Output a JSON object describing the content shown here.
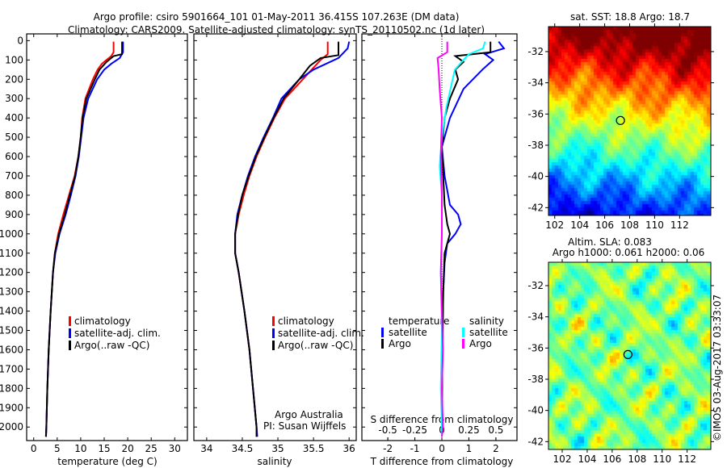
{
  "header": {
    "title_line1": "Argo profile: csiro 5901664_101 01-May-2011 36.415S 107.263E (DM data)",
    "title_line2": "Climatology: CARS2009. Satellite-adjusted climatology: synTS_20110502.nc (1d later)"
  },
  "footer": {
    "copyright": "©IMOS 03-Aug-2017 03:33:07"
  },
  "colors": {
    "climatology": "#ff0000",
    "satellite": "#0000ff",
    "argo": "#000000",
    "sal_satellite": "#00ffff",
    "sal_argo": "#ff00ff"
  },
  "chart_data": [
    {
      "type": "line",
      "id": "temperature",
      "xlabel": "temperature (deg C)",
      "ylabel": "depth",
      "xlim": [
        -1.5,
        32.7
      ],
      "ylim": [
        -35,
        2070
      ],
      "xticks": [
        0,
        5,
        10,
        15,
        20,
        25,
        30
      ],
      "yticks": [
        0,
        100,
        200,
        300,
        400,
        500,
        600,
        700,
        800,
        900,
        1000,
        1100,
        1200,
        1300,
        1400,
        1500,
        1600,
        1700,
        1800,
        1900,
        2000
      ],
      "legend": [
        "climatology",
        "satellite-adj. clim.",
        "Argo(..raw -QC)"
      ],
      "series": [
        {
          "name": "climatology",
          "color": "#ff0000",
          "depth": [
            5,
            60,
            80,
            120,
            150,
            200,
            300,
            400,
            500,
            600,
            700,
            800,
            900,
            1000,
            1100,
            1200,
            1400,
            1600,
            1800,
            2000,
            2050
          ],
          "values": [
            17,
            17,
            16.5,
            14.5,
            13.6,
            12.6,
            11,
            10.3,
            10,
            9.5,
            8.7,
            7.5,
            6.3,
            5.2,
            4.5,
            4.1,
            3.6,
            3.2,
            2.9,
            2.7,
            2.6
          ]
        },
        {
          "name": "satellite-adj. clim.",
          "color": "#0000ff",
          "depth": [
            5,
            60,
            90,
            120,
            150,
            200,
            300,
            400,
            500,
            600,
            700,
            800,
            900,
            1000,
            1100,
            1200,
            1400,
            1600,
            1800,
            2000,
            2050
          ],
          "values": [
            19,
            19,
            18.3,
            16.5,
            15,
            13.5,
            11.6,
            10.6,
            10.1,
            9.6,
            8.9,
            7.9,
            6.8,
            5.5,
            4.6,
            4.1,
            3.6,
            3.2,
            2.9,
            2.7,
            2.6
          ]
        },
        {
          "name": "Argo(..raw -QC)",
          "color": "#000000",
          "depth": [
            5,
            70,
            80,
            110,
            150,
            200,
            300,
            400,
            500,
            600,
            700,
            800,
            900,
            1000,
            1100,
            1200,
            1400,
            1600,
            1800,
            2000,
            2050
          ],
          "values": [
            18.8,
            18.8,
            17,
            15.5,
            14,
            13,
            11.2,
            10.4,
            10,
            9.5,
            8.8,
            7.7,
            6.6,
            5.4,
            4.5,
            4.1,
            3.6,
            3.2,
            2.9,
            2.7,
            2.6
          ]
        }
      ]
    },
    {
      "type": "line",
      "id": "salinity",
      "xlabel": "salinity",
      "xlim": [
        33.82,
        36.1
      ],
      "ylim": [
        -35,
        2070
      ],
      "xticks": [
        34,
        34.5,
        35,
        35.5,
        36
      ],
      "legend": [
        "climatology",
        "satellite-adj. clim.",
        "Argo(..raw -QC)"
      ],
      "annotation": [
        "Argo Australia",
        "PI: Susan Wijffels"
      ],
      "series": [
        {
          "name": "climatology",
          "color": "#ff0000",
          "depth": [
            5,
            70,
            100,
            200,
            300,
            400,
            500,
            600,
            700,
            800,
            900,
            1000,
            1100,
            1200,
            1400,
            1600,
            1800,
            2000,
            2050
          ],
          "values": [
            35.7,
            35.7,
            35.6,
            35.35,
            35.1,
            34.95,
            34.82,
            34.7,
            34.6,
            34.52,
            34.45,
            34.4,
            34.4,
            34.45,
            34.53,
            34.6,
            34.65,
            34.7,
            34.7
          ]
        },
        {
          "name": "satellite-adj. clim.",
          "color": "#0000ff",
          "depth": [
            5,
            40,
            90,
            150,
            200,
            300,
            400,
            500,
            600,
            700,
            800,
            900,
            1000,
            1100,
            1200,
            1400,
            1600,
            1800,
            2000,
            2050
          ],
          "values": [
            36,
            35.98,
            35.85,
            35.5,
            35.3,
            35.05,
            34.93,
            34.8,
            34.68,
            34.58,
            34.5,
            34.43,
            34.4,
            34.4,
            34.45,
            34.53,
            34.6,
            34.65,
            34.7,
            34.71
          ]
        },
        {
          "name": "Argo(..raw -QC)",
          "color": "#000000",
          "depth": [
            5,
            75,
            90,
            130,
            200,
            300,
            400,
            500,
            600,
            700,
            800,
            900,
            1000,
            1100,
            1200,
            1400,
            1600,
            1800,
            2000,
            2050
          ],
          "values": [
            35.85,
            35.85,
            35.6,
            35.45,
            35.3,
            35.08,
            34.94,
            34.81,
            34.69,
            34.59,
            34.5,
            34.44,
            34.4,
            34.4,
            34.45,
            34.53,
            34.6,
            34.65,
            34.7,
            34.7
          ]
        }
      ]
    },
    {
      "type": "line",
      "id": "difference",
      "xlabel": "T difference from climatology",
      "x2label": "S difference from climatology",
      "xlim": [
        -2.96,
        2.78
      ],
      "ylim": [
        -35,
        2070
      ],
      "xticks": [
        -2,
        -1,
        0,
        1,
        2
      ],
      "x2ticks": [
        -0.5,
        -0.25,
        0,
        0.25,
        0.5
      ],
      "x2_scale": 0.25,
      "legend_t": {
        "title": "temperature",
        "items": [
          "satellite",
          "Argo"
        ]
      },
      "legend_s": {
        "title": "salinity",
        "items": [
          "satellite",
          "Argo"
        ]
      },
      "series": [
        {
          "name": "T satellite",
          "color": "#0000ff",
          "scale": 1,
          "depth": [
            5,
            40,
            70,
            100,
            150,
            250,
            400,
            550,
            700,
            850,
            900,
            950,
            1000,
            1050,
            1150,
            1300,
            1600,
            2000,
            2050
          ],
          "values": [
            2.1,
            2.3,
            1.6,
            1.9,
            1.5,
            0.8,
            0.3,
            0,
            0.1,
            0.3,
            0.6,
            0.7,
            0.5,
            0.2,
            0.1,
            0.05,
            0.02,
            0,
            0
          ]
        },
        {
          "name": "T Argo",
          "color": "#000000",
          "scale": 1,
          "depth": [
            5,
            60,
            80,
            110,
            150,
            200,
            300,
            400,
            550,
            700,
            850,
            950,
            1000,
            1100,
            1300,
            1600,
            2000,
            2050
          ],
          "values": [
            1.8,
            1.8,
            0.5,
            0.8,
            0.5,
            0.6,
            0.3,
            0.1,
            0,
            0.05,
            0.1,
            0.2,
            0.3,
            0.1,
            0.05,
            0.02,
            0,
            0
          ]
        },
        {
          "name": "S satellite",
          "color": "#00ffff",
          "scale": 0.25,
          "depth": [
            5,
            40,
            70,
            100,
            150,
            250,
            350,
            500,
            650,
            800,
            1000,
            1200,
            1500,
            1800,
            2000,
            2050
          ],
          "values": [
            0.4,
            0.38,
            0.25,
            0.2,
            0.12,
            0.08,
            0.04,
            0,
            -0.02,
            0,
            0,
            -0.01,
            0,
            -0.01,
            0,
            0
          ]
        },
        {
          "name": "S Argo",
          "color": "#ff00ff",
          "scale": 0.25,
          "depth": [
            5,
            60,
            90,
            150,
            250,
            400,
            600,
            800,
            1000,
            1200,
            1400,
            1600,
            1800,
            2000,
            2050
          ],
          "values": [
            0.05,
            0.05,
            -0.04,
            -0.03,
            -0.02,
            0,
            -0.01,
            0,
            0,
            -0.01,
            0,
            0.01,
            0,
            0.01,
            0
          ]
        }
      ]
    },
    {
      "type": "heatmap",
      "id": "sst_map",
      "title": "sat. SST: 18.8 Argo: 18.7",
      "xlim": [
        101.5,
        114.5
      ],
      "ylim": [
        -42.5,
        -30.4
      ],
      "xticks": [
        102,
        104,
        106,
        108,
        110,
        112
      ],
      "yticks": [
        -32,
        -34,
        -36,
        -38,
        -40,
        -42
      ],
      "marker": {
        "lon": 107.263,
        "lat": -36.415
      }
    },
    {
      "type": "heatmap",
      "id": "sla_map",
      "title_line1": "Altim. SLA: 0.083",
      "title_line2": "Argo h1000: 0.061 h2000: 0.06",
      "xlim": [
        100.9,
        113.9
      ],
      "ylim": [
        -42.5,
        -30.5
      ],
      "xticks": [
        102,
        104,
        106,
        108,
        110,
        112
      ],
      "yticks": [
        -32,
        -34,
        -36,
        -38,
        -40,
        -42
      ],
      "marker": {
        "lon": 107.263,
        "lat": -36.415
      }
    }
  ]
}
